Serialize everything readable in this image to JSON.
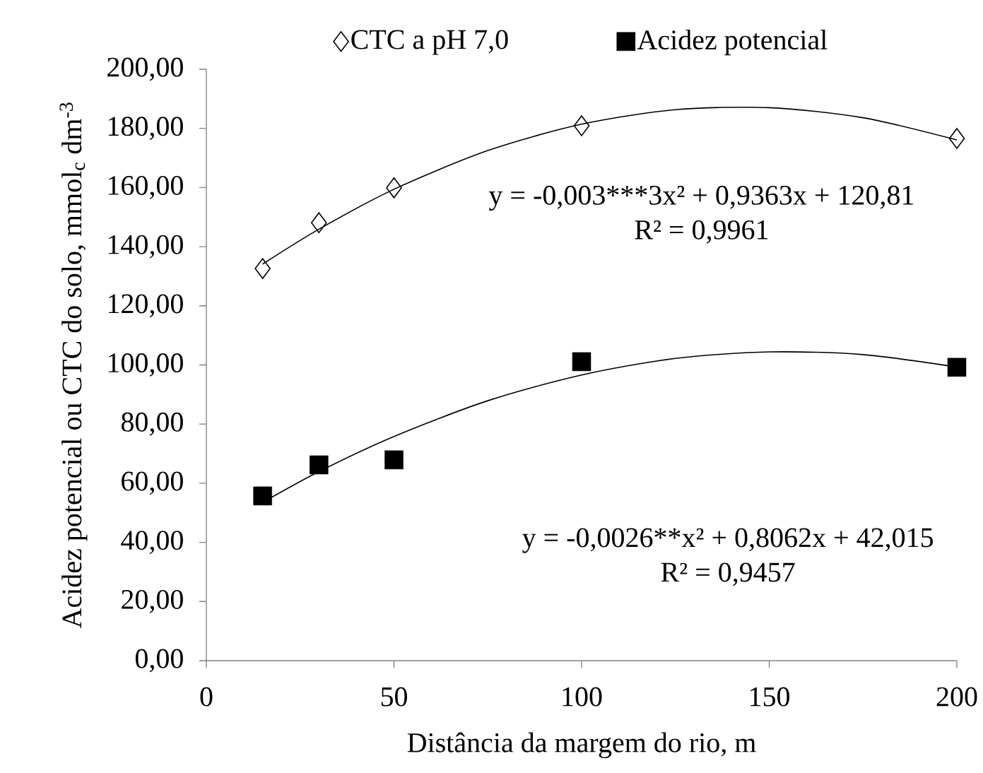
{
  "chart_data": {
    "type": "scatter",
    "xlabel": "Distância da margem do rio, m",
    "ylabel": "Acidez potencial ou CTC do solo, mmol$_{c}$ dm$^{-3}$",
    "xlim": [
      0,
      200
    ],
    "xticks": [
      0,
      50,
      100,
      150,
      200
    ],
    "ylim": [
      0,
      200
    ],
    "yticks": [
      {
        "value": 0,
        "label": "0,00"
      },
      {
        "value": 20,
        "label": "20,00"
      },
      {
        "value": 40,
        "label": "40,00"
      },
      {
        "value": 60,
        "label": "60,00"
      },
      {
        "value": 80,
        "label": "80,00"
      },
      {
        "value": 100,
        "label": "100,00"
      },
      {
        "value": 120,
        "label": "120,00"
      },
      {
        "value": 140,
        "label": "140,00"
      },
      {
        "value": 160,
        "label": "160,00"
      },
      {
        "value": 180,
        "label": "180,00"
      },
      {
        "value": 200,
        "label": "200,00"
      }
    ],
    "legend": "top",
    "x": [
      15,
      30,
      50,
      100,
      200
    ],
    "series": [
      {
        "name": "CTC a pH 7,0",
        "color": "#000000",
        "marker": "diamond",
        "values": [
          132.6,
          148.1,
          159.9,
          180.9,
          176.6
        ]
      },
      {
        "name": "Acidez potencial",
        "color": "#000000",
        "marker": "square",
        "values": [
          55.7,
          66.2,
          67.9,
          101.1,
          99.2
        ]
      },
      {
        "type": "line",
        "color": "#000000",
        "marker": "none",
        "x": [
          15,
          30,
          50,
          75,
          100,
          125,
          150,
          175,
          200
        ],
        "values": [
          134.1,
          145.9,
          159.4,
          172.5,
          181.4,
          186.3,
          187.0,
          183.6,
          176.1
        ]
      },
      {
        "type": "line",
        "color": "#000000",
        "marker": "none",
        "x": [
          15,
          30,
          50,
          75,
          100,
          125,
          150,
          175,
          200
        ],
        "values": [
          53.5,
          63.9,
          75.8,
          87.9,
          96.6,
          102.2,
          104.4,
          103.5,
          99.3
        ]
      }
    ],
    "annotations": [
      "y = -0,003***3x² + 0,9363x + 120,81",
      "R² = 0,9961",
      "y = -0,0026**x² + 0,8062x + 42,015",
      "R² = 0,9457"
    ]
  }
}
